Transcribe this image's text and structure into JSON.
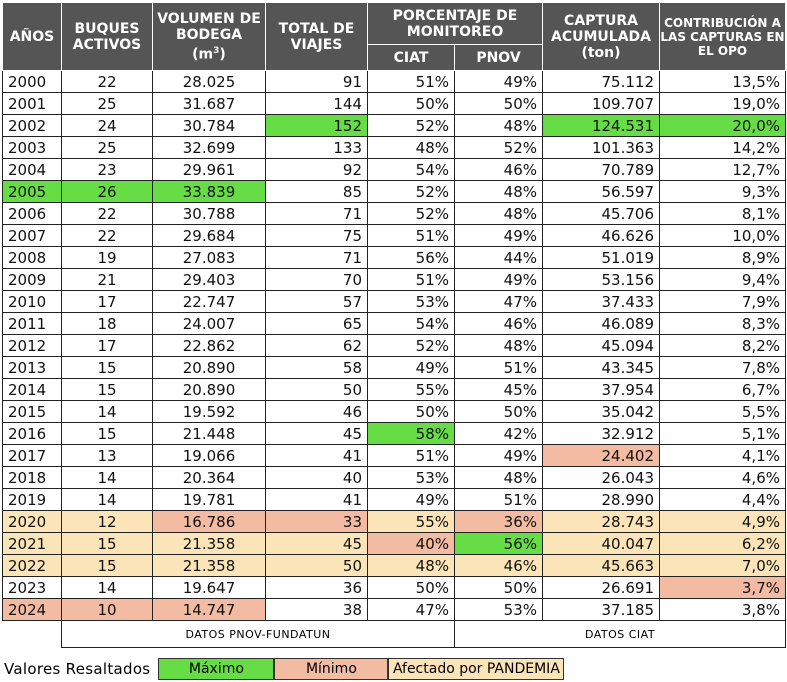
{
  "headers": {
    "anos": "AÑOS",
    "buques": "BUQUES ACTIVOS",
    "volumen": "VOLUMEN DE BODEGA",
    "volumen_unit_base": "(m",
    "volumen_unit_sup": "3",
    "volumen_unit_end": ")",
    "viajes": "TOTAL DE VIAJES",
    "porcentaje": "PORCENTAJE DE MONITOREO",
    "ciat": "CIAT",
    "pnov": "PNOV",
    "captura": "CAPTURA ACUMULADA",
    "captura_unit": "(ton)",
    "contribucion": "CONTRIBUCIÓN A LAS CAPTURAS EN EL OPO"
  },
  "rows": [
    {
      "year": "2000",
      "buques": "22",
      "volumen": "28.025",
      "viajes": "91",
      "ciat": "51%",
      "pnov": "49%",
      "captura": "75.112",
      "contrib": "13,5%"
    },
    {
      "year": "2001",
      "buques": "25",
      "volumen": "31.687",
      "viajes": "144",
      "ciat": "50%",
      "pnov": "50%",
      "captura": "109.707",
      "contrib": "19,0%"
    },
    {
      "year": "2002",
      "buques": "24",
      "volumen": "30.784",
      "viajes": "152",
      "ciat": "52%",
      "pnov": "48%",
      "captura": "124.531",
      "contrib": "20,0%"
    },
    {
      "year": "2003",
      "buques": "25",
      "volumen": "32.699",
      "viajes": "133",
      "ciat": "48%",
      "pnov": "52%",
      "captura": "101.363",
      "contrib": "14,2%"
    },
    {
      "year": "2004",
      "buques": "23",
      "volumen": "29.961",
      "viajes": "92",
      "ciat": "54%",
      "pnov": "46%",
      "captura": "70.789",
      "contrib": "12,7%"
    },
    {
      "year": "2005",
      "buques": "26",
      "volumen": "33.839",
      "viajes": "85",
      "ciat": "52%",
      "pnov": "48%",
      "captura": "56.597",
      "contrib": "9,3%"
    },
    {
      "year": "2006",
      "buques": "22",
      "volumen": "30.788",
      "viajes": "71",
      "ciat": "52%",
      "pnov": "48%",
      "captura": "45.706",
      "contrib": "8,1%"
    },
    {
      "year": "2007",
      "buques": "22",
      "volumen": "29.684",
      "viajes": "75",
      "ciat": "51%",
      "pnov": "49%",
      "captura": "46.626",
      "contrib": "10,0%"
    },
    {
      "year": "2008",
      "buques": "19",
      "volumen": "27.083",
      "viajes": "71",
      "ciat": "56%",
      "pnov": "44%",
      "captura": "51.019",
      "contrib": "8,9%"
    },
    {
      "year": "2009",
      "buques": "21",
      "volumen": "29.403",
      "viajes": "70",
      "ciat": "51%",
      "pnov": "49%",
      "captura": "53.156",
      "contrib": "9,4%"
    },
    {
      "year": "2010",
      "buques": "17",
      "volumen": "22.747",
      "viajes": "57",
      "ciat": "53%",
      "pnov": "47%",
      "captura": "37.433",
      "contrib": "7,9%"
    },
    {
      "year": "2011",
      "buques": "18",
      "volumen": "24.007",
      "viajes": "65",
      "ciat": "54%",
      "pnov": "46%",
      "captura": "46.089",
      "contrib": "8,3%"
    },
    {
      "year": "2012",
      "buques": "17",
      "volumen": "22.862",
      "viajes": "62",
      "ciat": "52%",
      "pnov": "48%",
      "captura": "45.094",
      "contrib": "8,2%"
    },
    {
      "year": "2013",
      "buques": "15",
      "volumen": "20.890",
      "viajes": "58",
      "ciat": "49%",
      "pnov": "51%",
      "captura": "43.345",
      "contrib": "7,8%"
    },
    {
      "year": "2014",
      "buques": "15",
      "volumen": "20.890",
      "viajes": "50",
      "ciat": "55%",
      "pnov": "45%",
      "captura": "37.954",
      "contrib": "6,7%"
    },
    {
      "year": "2015",
      "buques": "14",
      "volumen": "19.592",
      "viajes": "46",
      "ciat": "50%",
      "pnov": "50%",
      "captura": "35.042",
      "contrib": "5,5%"
    },
    {
      "year": "2016",
      "buques": "15",
      "volumen": "21.448",
      "viajes": "45",
      "ciat": "58%",
      "pnov": "42%",
      "captura": "32.912",
      "contrib": "5,1%"
    },
    {
      "year": "2017",
      "buques": "13",
      "volumen": "19.066",
      "viajes": "41",
      "ciat": "51%",
      "pnov": "49%",
      "captura": "24.402",
      "contrib": "4,1%"
    },
    {
      "year": "2018",
      "buques": "14",
      "volumen": "20.364",
      "viajes": "40",
      "ciat": "53%",
      "pnov": "48%",
      "captura": "26.043",
      "contrib": "4,6%"
    },
    {
      "year": "2019",
      "buques": "14",
      "volumen": "19.781",
      "viajes": "41",
      "ciat": "49%",
      "pnov": "51%",
      "captura": "28.990",
      "contrib": "4,4%"
    },
    {
      "year": "2020",
      "buques": "12",
      "volumen": "16.786",
      "viajes": "33",
      "ciat": "55%",
      "pnov": "36%",
      "captura": "28.743",
      "contrib": "4,9%"
    },
    {
      "year": "2021",
      "buques": "15",
      "volumen": "21.358",
      "viajes": "45",
      "ciat": "40%",
      "pnov": "56%",
      "captura": "40.047",
      "contrib": "6,2%"
    },
    {
      "year": "2022",
      "buques": "15",
      "volumen": "21.358",
      "viajes": "50",
      "ciat": "48%",
      "pnov": "46%",
      "captura": "45.663",
      "contrib": "7,0%"
    },
    {
      "year": "2023",
      "buques": "14",
      "volumen": "19.647",
      "viajes": "36",
      "ciat": "50%",
      "pnov": "50%",
      "captura": "26.691",
      "contrib": "3,7%"
    },
    {
      "year": "2024",
      "buques": "10",
      "volumen": "14.747",
      "viajes": "38",
      "ciat": "47%",
      "pnov": "53%",
      "captura": "37.185",
      "contrib": "3,8%"
    }
  ],
  "sources": {
    "left": "DATOS PNOV-FUNDATUN",
    "right": "DATOS CIAT"
  },
  "legend": {
    "label": "Valores Resaltados",
    "max": "Máximo",
    "min": "Mínimo",
    "pandemic": "Afectado por PANDEMIA"
  },
  "highlight_colors": {
    "max": "#66dd44",
    "min": "#f2bba2",
    "pandemic": "#fbe4b8",
    "header_bg": "#555555"
  }
}
